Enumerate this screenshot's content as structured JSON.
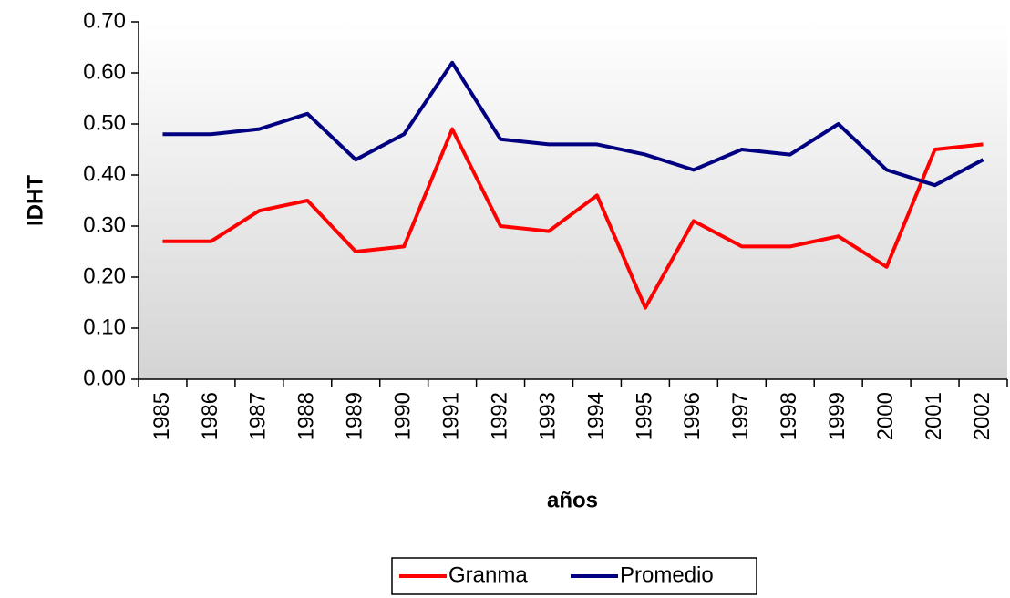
{
  "chart_data": {
    "type": "line",
    "x_label": "años",
    "y_label": "IDHT",
    "categories": [
      "1985",
      "1986",
      "1987",
      "1988",
      "1989",
      "1990",
      "1991",
      "1992",
      "1993",
      "1994",
      "1995",
      "1996",
      "1997",
      "1998",
      "1999",
      "2000",
      "2001",
      "2002"
    ],
    "series": [
      {
        "name": "Granma",
        "color": "#ff0000",
        "values": [
          0.27,
          0.27,
          0.33,
          0.35,
          0.25,
          0.26,
          0.49,
          0.3,
          0.29,
          0.36,
          0.14,
          0.31,
          0.26,
          0.26,
          0.28,
          0.22,
          0.45,
          0.46
        ]
      },
      {
        "name": "Promedio",
        "color": "#000080",
        "values": [
          0.48,
          0.48,
          0.49,
          0.52,
          0.43,
          0.48,
          0.62,
          0.47,
          0.46,
          0.46,
          0.44,
          0.41,
          0.45,
          0.44,
          0.5,
          0.41,
          0.38,
          0.43
        ]
      }
    ],
    "ylim": [
      0,
      0.7
    ],
    "yticks": [
      {
        "value": 0,
        "label": "0.00"
      },
      {
        "value": 0.1,
        "label": "0.10"
      },
      {
        "value": 0.2,
        "label": "0.20"
      },
      {
        "value": 0.3,
        "label": "0.30"
      },
      {
        "value": 0.4,
        "label": "0.40"
      },
      {
        "value": 0.5,
        "label": "0.50"
      },
      {
        "value": 0.6,
        "label": "0.60"
      },
      {
        "value": 0.7,
        "label": "0.70"
      }
    ],
    "legend": "bottom"
  }
}
